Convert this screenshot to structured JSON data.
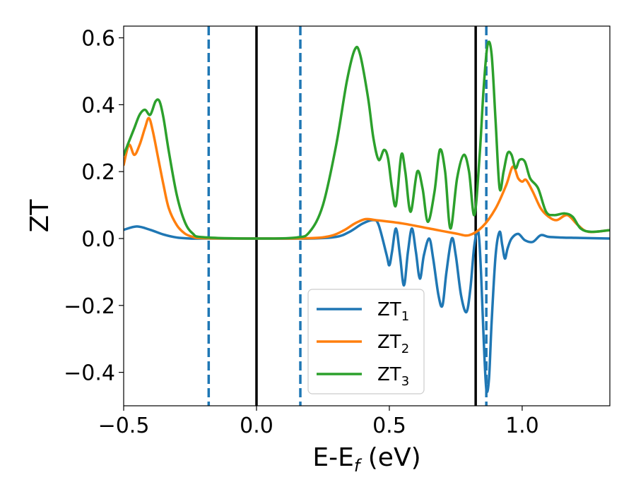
{
  "chart_data": {
    "type": "line",
    "xlabel": "E-E",
    "xlabel_sub": "f",
    "xlabel_unit": " (eV)",
    "ylabel": "ZT",
    "xlim": [
      -0.5,
      1.33
    ],
    "ylim": [
      -0.5,
      0.635
    ],
    "xticks": [
      -0.5,
      0.0,
      0.5,
      1.0
    ],
    "xtick_labels": [
      "−0.5",
      "0.0",
      "0.5",
      "1.0"
    ],
    "yticks": [
      -0.4,
      -0.2,
      0.0,
      0.2,
      0.4,
      0.6
    ],
    "ytick_labels": [
      "−0.4",
      "−0.2",
      "0.0",
      "0.2",
      "0.4",
      "0.6"
    ],
    "grid": false,
    "legend_position": "bottom-center",
    "vlines": [
      {
        "x": -0.18,
        "style": "dashed",
        "color": "#1f77b4"
      },
      {
        "x": 0.0,
        "style": "solid",
        "color": "#000000"
      },
      {
        "x": 0.165,
        "style": "dashed",
        "color": "#1f77b4"
      },
      {
        "x": 0.825,
        "style": "solid",
        "color": "#000000"
      },
      {
        "x": 0.865,
        "style": "dashed",
        "color": "#1f77b4"
      }
    ],
    "series": [
      {
        "name": "ZT",
        "name_sub": "1",
        "color": "#1f77b4",
        "points": [
          [
            -0.5,
            0.026
          ],
          [
            -0.45,
            0.036
          ],
          [
            -0.4,
            0.026
          ],
          [
            -0.35,
            0.012
          ],
          [
            -0.3,
            0.003
          ],
          [
            -0.25,
            0.0
          ],
          [
            -0.2,
            0.0
          ],
          [
            0.0,
            0.0
          ],
          [
            0.2,
            0.0
          ],
          [
            0.3,
            0.005
          ],
          [
            0.35,
            0.02
          ],
          [
            0.4,
            0.045
          ],
          [
            0.44,
            0.055
          ],
          [
            0.46,
            0.04
          ],
          [
            0.49,
            -0.05
          ],
          [
            0.5,
            -0.08
          ],
          [
            0.51,
            -0.04
          ],
          [
            0.525,
            0.03
          ],
          [
            0.54,
            -0.05
          ],
          [
            0.555,
            -0.14
          ],
          [
            0.57,
            -0.04
          ],
          [
            0.585,
            0.03
          ],
          [
            0.6,
            -0.04
          ],
          [
            0.615,
            -0.12
          ],
          [
            0.63,
            -0.05
          ],
          [
            0.65,
            0.0
          ],
          [
            0.665,
            -0.06
          ],
          [
            0.685,
            -0.17
          ],
          [
            0.7,
            -0.2
          ],
          [
            0.715,
            -0.1
          ],
          [
            0.735,
            0.0
          ],
          [
            0.75,
            -0.05
          ],
          [
            0.77,
            -0.17
          ],
          [
            0.79,
            -0.22
          ],
          [
            0.805,
            -0.15
          ],
          [
            0.82,
            -0.02
          ],
          [
            0.835,
            0.02
          ],
          [
            0.845,
            -0.1
          ],
          [
            0.855,
            -0.3
          ],
          [
            0.865,
            -0.45
          ],
          [
            0.875,
            -0.42
          ],
          [
            0.885,
            -0.25
          ],
          [
            0.9,
            -0.05
          ],
          [
            0.915,
            0.02
          ],
          [
            0.925,
            -0.02
          ],
          [
            0.935,
            -0.06
          ],
          [
            0.945,
            -0.03
          ],
          [
            0.96,
            0.0
          ],
          [
            0.985,
            0.014
          ],
          [
            1.01,
            -0.005
          ],
          [
            1.04,
            -0.01
          ],
          [
            1.07,
            0.01
          ],
          [
            1.1,
            0.005
          ],
          [
            1.15,
            0.003
          ],
          [
            1.2,
            0.002
          ],
          [
            1.33,
            0.0
          ]
        ]
      },
      {
        "name": "ZT",
        "name_sub": "2",
        "color": "#ff7f0e",
        "points": [
          [
            -0.5,
            0.22
          ],
          [
            -0.48,
            0.28
          ],
          [
            -0.46,
            0.25
          ],
          [
            -0.44,
            0.28
          ],
          [
            -0.42,
            0.33
          ],
          [
            -0.405,
            0.36
          ],
          [
            -0.39,
            0.32
          ],
          [
            -0.37,
            0.24
          ],
          [
            -0.35,
            0.16
          ],
          [
            -0.33,
            0.09
          ],
          [
            -0.3,
            0.04
          ],
          [
            -0.27,
            0.015
          ],
          [
            -0.24,
            0.005
          ],
          [
            -0.2,
            0.001
          ],
          [
            0.0,
            0.0
          ],
          [
            0.2,
            0.001
          ],
          [
            0.28,
            0.008
          ],
          [
            0.33,
            0.025
          ],
          [
            0.37,
            0.045
          ],
          [
            0.41,
            0.058
          ],
          [
            0.45,
            0.055
          ],
          [
            0.55,
            0.045
          ],
          [
            0.65,
            0.03
          ],
          [
            0.75,
            0.015
          ],
          [
            0.8,
            0.01
          ],
          [
            0.85,
            0.035
          ],
          [
            0.9,
            0.09
          ],
          [
            0.94,
            0.16
          ],
          [
            0.965,
            0.215
          ],
          [
            0.985,
            0.18
          ],
          [
            1.0,
            0.17
          ],
          [
            1.015,
            0.175
          ],
          [
            1.04,
            0.14
          ],
          [
            1.07,
            0.09
          ],
          [
            1.1,
            0.065
          ],
          [
            1.13,
            0.055
          ],
          [
            1.17,
            0.07
          ],
          [
            1.21,
            0.04
          ],
          [
            1.25,
            0.02
          ],
          [
            1.33,
            0.025
          ]
        ]
      },
      {
        "name": "ZT",
        "name_sub": "3",
        "color": "#2ca02c",
        "points": [
          [
            -0.5,
            0.25
          ],
          [
            -0.48,
            0.29
          ],
          [
            -0.46,
            0.33
          ],
          [
            -0.44,
            0.37
          ],
          [
            -0.42,
            0.385
          ],
          [
            -0.4,
            0.37
          ],
          [
            -0.38,
            0.41
          ],
          [
            -0.365,
            0.41
          ],
          [
            -0.35,
            0.36
          ],
          [
            -0.33,
            0.26
          ],
          [
            -0.3,
            0.13
          ],
          [
            -0.27,
            0.05
          ],
          [
            -0.24,
            0.015
          ],
          [
            -0.2,
            0.004
          ],
          [
            0.0,
            0.0
          ],
          [
            0.15,
            0.003
          ],
          [
            0.2,
            0.02
          ],
          [
            0.25,
            0.1
          ],
          [
            0.3,
            0.28
          ],
          [
            0.34,
            0.47
          ],
          [
            0.37,
            0.565
          ],
          [
            0.39,
            0.55
          ],
          [
            0.42,
            0.42
          ],
          [
            0.44,
            0.3
          ],
          [
            0.46,
            0.235
          ],
          [
            0.48,
            0.265
          ],
          [
            0.495,
            0.24
          ],
          [
            0.51,
            0.15
          ],
          [
            0.525,
            0.1
          ],
          [
            0.545,
            0.25
          ],
          [
            0.56,
            0.2
          ],
          [
            0.58,
            0.08
          ],
          [
            0.605,
            0.2
          ],
          [
            0.625,
            0.15
          ],
          [
            0.645,
            0.05
          ],
          [
            0.67,
            0.14
          ],
          [
            0.69,
            0.265
          ],
          [
            0.71,
            0.2
          ],
          [
            0.73,
            0.03
          ],
          [
            0.755,
            0.18
          ],
          [
            0.78,
            0.25
          ],
          [
            0.8,
            0.2
          ],
          [
            0.82,
            0.07
          ],
          [
            0.84,
            0.25
          ],
          [
            0.855,
            0.45
          ],
          [
            0.87,
            0.58
          ],
          [
            0.885,
            0.55
          ],
          [
            0.9,
            0.35
          ],
          [
            0.915,
            0.15
          ],
          [
            0.93,
            0.2
          ],
          [
            0.945,
            0.255
          ],
          [
            0.96,
            0.25
          ],
          [
            0.975,
            0.21
          ],
          [
            0.99,
            0.235
          ],
          [
            1.01,
            0.23
          ],
          [
            1.03,
            0.18
          ],
          [
            1.06,
            0.15
          ],
          [
            1.09,
            0.08
          ],
          [
            1.12,
            0.07
          ],
          [
            1.16,
            0.075
          ],
          [
            1.19,
            0.065
          ],
          [
            1.22,
            0.03
          ],
          [
            1.26,
            0.02
          ],
          [
            1.33,
            0.025
          ]
        ]
      }
    ]
  }
}
